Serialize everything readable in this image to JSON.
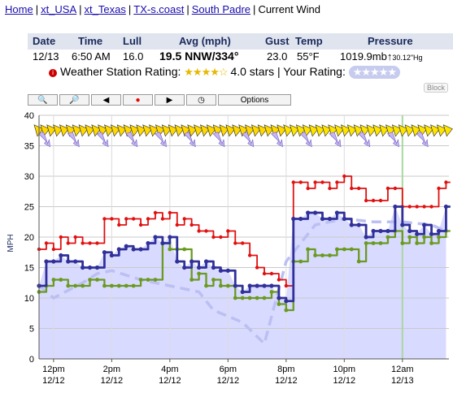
{
  "breadcrumb": {
    "items": [
      "Home",
      "xt_USA",
      "xt_Texas",
      "TX-s.coast",
      "South Padre"
    ],
    "current": "Current Wind"
  },
  "header": {
    "cols": [
      "Date",
      "Time",
      "Lull",
      "Avg (mph)",
      "Gust",
      "Temp",
      "Pressure"
    ],
    "date": "12/13",
    "time": "6:50 AM",
    "lull": "16.0",
    "avg": "19.5 NNW/334°",
    "gust": "23.0",
    "temp": "55°F",
    "pressure": "1019.9mb",
    "pressure_arrow": "↑",
    "pressure_hg": "30.12\"Hg"
  },
  "rating": {
    "label": "Weather Station Rating:",
    "stars": "★★★★☆",
    "text": "4.0 stars | Your Rating:",
    "user_stars": "★★★★★"
  },
  "block_label": "Block",
  "toolbar": {
    "zoom_in_icon": "magnifier-plus-icon",
    "zoom_out_icon": "magnifier-minus-icon",
    "back_icon": "left-arrow-icon",
    "record_icon": "red-dot-icon",
    "forward_icon": "right-arrow-icon",
    "clock_icon": "clock-icon",
    "options_label": "Options"
  },
  "chart_data": {
    "type": "line",
    "ylim": [
      0,
      40
    ],
    "yticks": [
      0,
      5,
      10,
      15,
      20,
      25,
      30,
      35,
      40
    ],
    "ylabel": "MPH",
    "x_hours_range": [
      11.5,
      25.6
    ],
    "xticks": [
      {
        "h": 12,
        "top": "12pm",
        "bottom": "12/12"
      },
      {
        "h": 14,
        "top": "2pm",
        "bottom": "12/12"
      },
      {
        "h": 16,
        "top": "4pm",
        "bottom": "12/12"
      },
      {
        "h": 18,
        "top": "6pm",
        "bottom": "12/12"
      },
      {
        "h": 20,
        "top": "8pm",
        "bottom": "12/12"
      },
      {
        "h": 22,
        "top": "10pm",
        "bottom": "12/12"
      },
      {
        "h": 24,
        "top": "12am",
        "bottom": "12/13"
      }
    ],
    "colors": {
      "gust": "#e01010",
      "avg": "#30309a",
      "lull": "#6a9a20",
      "area": "#d8daff",
      "dashed": "#bbbff2",
      "now": "#a8d8a0"
    },
    "now_hour": 24.0,
    "x_hours": [
      11.5,
      11.75,
      12.0,
      12.25,
      12.5,
      12.75,
      13.0,
      13.25,
      13.5,
      13.75,
      14.0,
      14.25,
      14.5,
      14.75,
      15.0,
      15.25,
      15.5,
      15.75,
      16.0,
      16.25,
      16.5,
      16.75,
      17.0,
      17.25,
      17.5,
      17.75,
      18.0,
      18.25,
      18.5,
      18.75,
      19.0,
      19.25,
      19.5,
      19.75,
      20.0,
      20.25,
      20.5,
      20.75,
      21.0,
      21.25,
      21.5,
      21.75,
      22.0,
      22.25,
      22.5,
      22.75,
      23.0,
      23.25,
      23.5,
      23.75,
      24.0,
      24.25,
      24.5,
      24.75,
      25.0,
      25.25,
      25.5
    ],
    "series": [
      {
        "key": "gust",
        "values": [
          18,
          19,
          18,
          20,
          19,
          20,
          19,
          19,
          19,
          23,
          23,
          22,
          23,
          23,
          22,
          23,
          24,
          23,
          24,
          22,
          23,
          22,
          21,
          21,
          20,
          20,
          21,
          19,
          19,
          17,
          15,
          14,
          14,
          13,
          12,
          29,
          29,
          28,
          29,
          29,
          28,
          29,
          30,
          28,
          28,
          26,
          26,
          26,
          28,
          28,
          25,
          25,
          25,
          25,
          25,
          28,
          29
        ]
      },
      {
        "key": "avg",
        "values": [
          12,
          16,
          16,
          17,
          16,
          16,
          15,
          15,
          15,
          17.5,
          17,
          18,
          18.5,
          18,
          18,
          19,
          20,
          19,
          20,
          16,
          15,
          16,
          15,
          16,
          15,
          14.5,
          14.5,
          12,
          11,
          12,
          12,
          12,
          12,
          10,
          9.5,
          23,
          23,
          24,
          24,
          23,
          23,
          24,
          23,
          22,
          22,
          20,
          21,
          21,
          21,
          25,
          22,
          21,
          20.5,
          22,
          20.5,
          21,
          25
        ]
      },
      {
        "key": "lull",
        "values": [
          11,
          12,
          13,
          13,
          12,
          12,
          12,
          13,
          13,
          12,
          12,
          12,
          12,
          12,
          13,
          13,
          13,
          19,
          18,
          18,
          18,
          13,
          14,
          12,
          13,
          12,
          12,
          10,
          10,
          10,
          10,
          10,
          11,
          9,
          8,
          16,
          16,
          18,
          17,
          17,
          17,
          18,
          18,
          18,
          16,
          19,
          19,
          19,
          20,
          21,
          19,
          20,
          19,
          20,
          19,
          20,
          21
        ]
      },
      {
        "key": "dashed",
        "values": [
          12,
          null,
          10,
          null,
          null,
          null,
          12.5,
          null,
          14,
          null,
          14.5,
          null,
          null,
          null,
          13,
          null,
          null,
          null,
          12,
          null,
          null,
          null,
          11,
          null,
          8,
          null,
          null,
          null,
          6,
          null,
          null,
          2.5,
          null,
          null,
          16,
          null,
          null,
          null,
          22,
          null,
          null,
          null,
          23,
          null,
          null,
          null,
          22.5,
          null,
          null,
          null,
          22.5,
          null,
          null,
          null,
          22,
          null,
          21
        ]
      }
    ]
  }
}
